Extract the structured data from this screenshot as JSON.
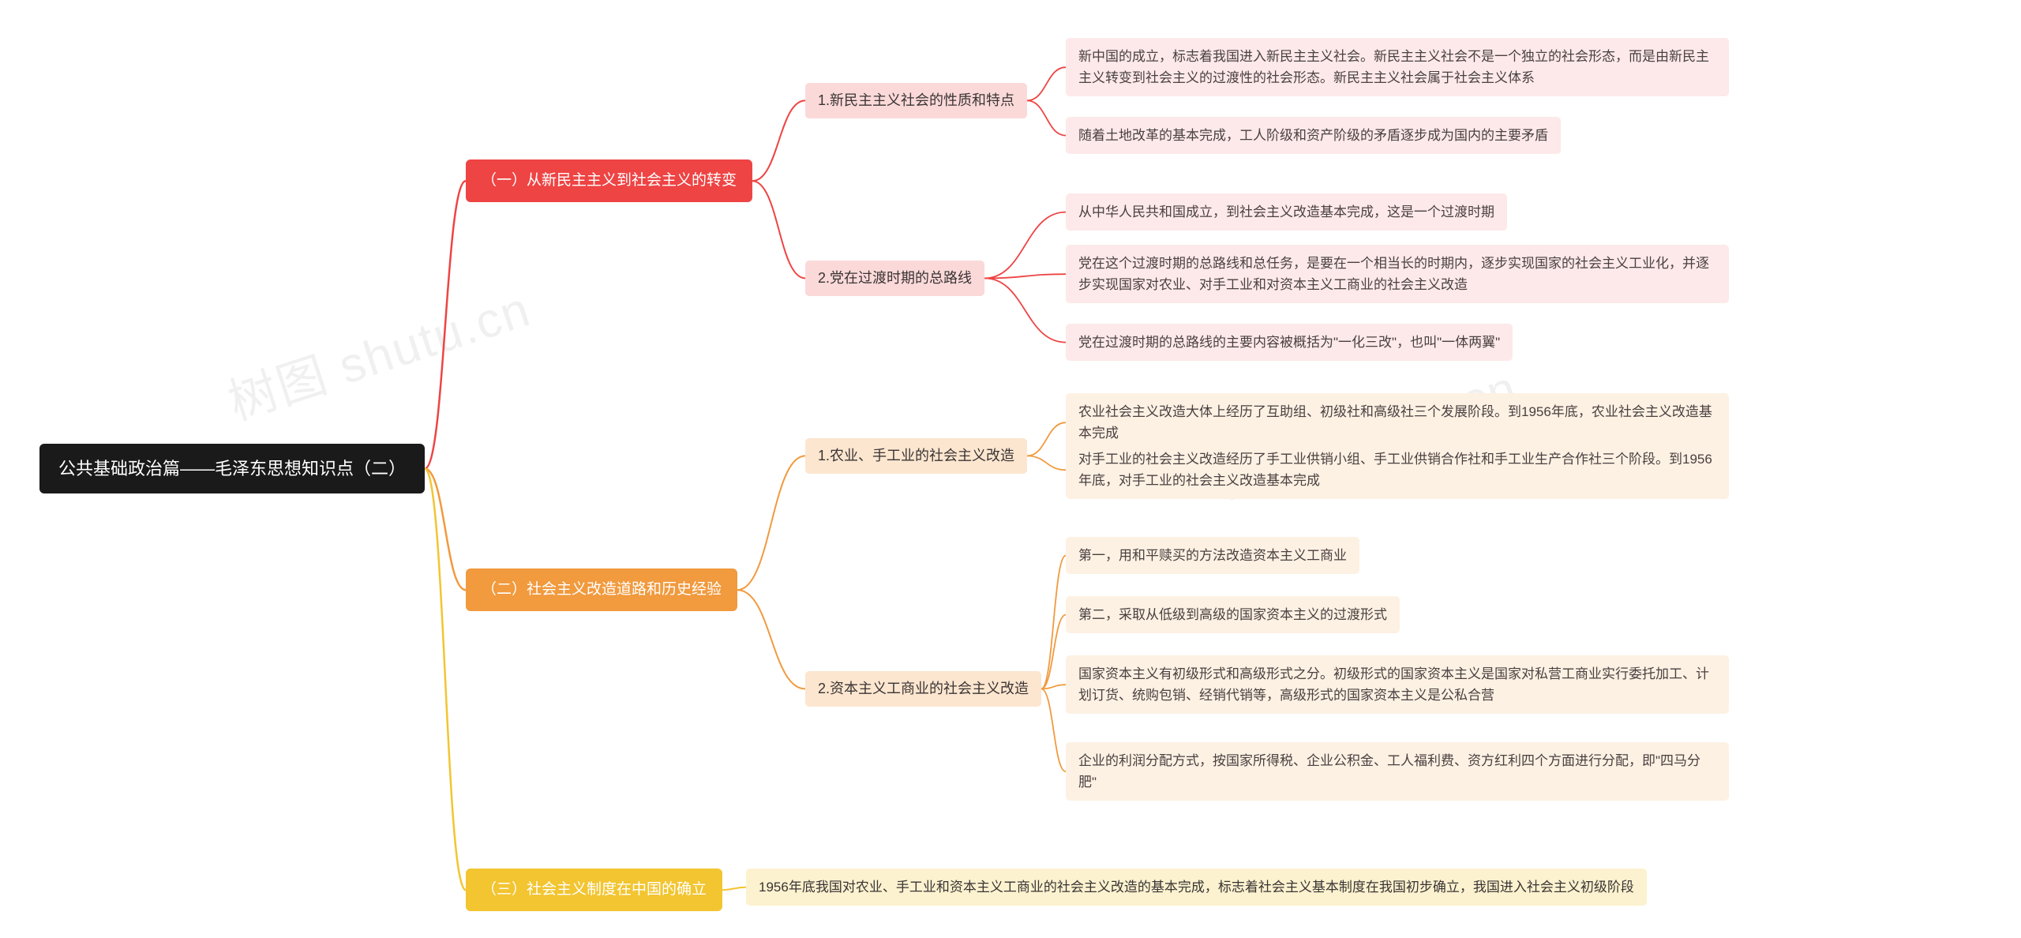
{
  "watermark": "树图 shutu.cn",
  "root": {
    "text": "公共基础政治篇——毛泽东思想知识点（二）"
  },
  "colors": {
    "root_bg": "#1a1a1a",
    "root_fg": "#ffffff",
    "b1_bg": "#ee4444",
    "b1_fg": "#ffffff",
    "b2_bg": "#f19a3e",
    "b2_fg": "#ffffff",
    "b3_bg": "#f2c531",
    "b3_fg": "#ffffff",
    "s1_bg": "#fbd9d9",
    "s1_fg": "#3a3434",
    "s2_bg": "#fce6cf",
    "s2_fg": "#3a3434",
    "s3_bg": "#fcf2cf",
    "s3_fg": "#3a3434",
    "l1_bg": "#fde9e9",
    "l1_fg": "#4a4040",
    "l2_bg": "#fdf1e3",
    "l2_fg": "#4a4040",
    "edge1": "#ee4444",
    "edge2": "#f19a3e",
    "edge3": "#f2c531"
  },
  "branch1": {
    "text": "（一）从新民主主义到社会主义的转变",
    "sub1": {
      "text": "1.新民主主义社会的性质和特点",
      "leaves": [
        "新中国的成立，标志着我国进入新民主主义社会。新民主主义社会不是一个独立的社会形态，而是由新民主主义转变到社会主义的过渡性的社会形态。新民主主义社会属于社会主义体系",
        "随着土地改革的基本完成，工人阶级和资产阶级的矛盾逐步成为国内的主要矛盾"
      ]
    },
    "sub2": {
      "text": "2.党在过渡时期的总路线",
      "leaves": [
        "从中华人民共和国成立，到社会主义改造基本完成，这是一个过渡时期",
        "党在这个过渡时期的总路线和总任务，是要在一个相当长的时期内，逐步实现国家的社会主义工业化，并逐步实现国家对农业、对手工业和对资本主义工商业的社会主义改造",
        "党在过渡时期的总路线的主要内容被概括为\"一化三改\"，也叫\"一体两翼\""
      ]
    }
  },
  "branch2": {
    "text": "（二）社会主义改造道路和历史经验",
    "sub1": {
      "text": "1.农业、手工业的社会主义改造",
      "leaves": [
        "农业社会主义改造大体上经历了互助组、初级社和高级社三个发展阶段。到1956年底，农业社会主义改造基本完成",
        "对手工业的社会主义改造经历了手工业供销小组、手工业供销合作社和手工业生产合作社三个阶段。到1956年底，对手工业的社会主义改造基本完成"
      ]
    },
    "sub2": {
      "text": "2.资本主义工商业的社会主义改造",
      "leaves": [
        "第一，用和平赎买的方法改造资本主义工商业",
        "第二，采取从低级到高级的国家资本主义的过渡形式",
        "国家资本主义有初级形式和高级形式之分。初级形式的国家资本主义是国家对私营工商业实行委托加工、计划订货、统购包销、经销代销等，高级形式的国家资本主义是公私合营",
        "企业的利润分配方式，按国家所得税、企业公积金、工人福利费、资方红利四个方面进行分配，即\"四马分肥\""
      ]
    }
  },
  "branch3": {
    "text": "（三）社会主义制度在中国的确立",
    "leaf": "1956年底我国对农业、手工业和资本主义工商业的社会主义改造的基本完成，标志着社会主义基本制度在我国初步确立，我国进入社会主义初级阶段"
  }
}
